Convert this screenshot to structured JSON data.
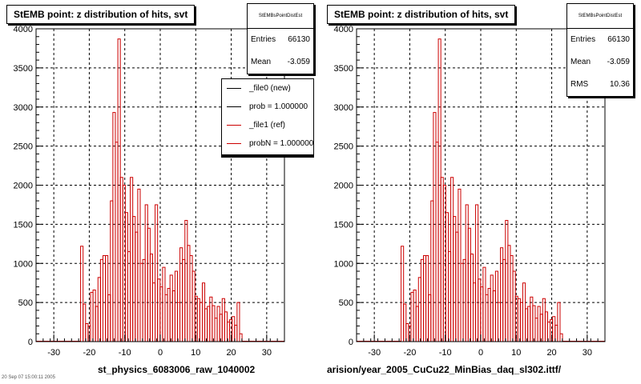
{
  "panels": [
    {
      "title": "StEMB point: z distribution of hits, svt",
      "stats": {
        "name": "StEMBsPointDistEst",
        "rows": [
          {
            "label": "Entries",
            "value": "66130"
          },
          {
            "label": "Mean",
            "value": "-3.059"
          }
        ]
      },
      "legend": [
        {
          "label": "_file0 (new)",
          "color": "#000000"
        },
        {
          "label": "prob = 1.000000",
          "color": "#000000"
        },
        {
          "label": "_file1 (ref)",
          "color": "#cc0000"
        },
        {
          "label": "probN = 1.000000",
          "color": "#cc0000"
        }
      ],
      "x_title": "st_physics_6083006_raw_1040002"
    },
    {
      "title": "StEMB point: z distribution of hits, svt",
      "stats": {
        "name": "StEMBsPointDistEst",
        "rows": [
          {
            "label": "Entries",
            "value": "66130"
          },
          {
            "label": "Mean",
            "value": "-3.059"
          },
          {
            "label": "RMS",
            "value": "10.36"
          }
        ]
      },
      "x_title": "arision/year_2005_CuCu22_MinBias_daq_sl302.ittf/"
    }
  ],
  "footer": "20 Sep 07 15:00:11 2005",
  "colors": {
    "hist_line": "#cc0000",
    "grid": "#000000",
    "frame": "#000000"
  },
  "chart_data": [
    {
      "type": "bar",
      "title": "StEMB point: z distribution of hits, svt",
      "xlabel": "st_physics_6083006_raw_1040002",
      "ylabel": "",
      "xlim": [
        -35,
        35
      ],
      "ylim": [
        0,
        4000
      ],
      "xticks": [
        -30,
        -20,
        -10,
        0,
        10,
        20,
        30
      ],
      "yticks": [
        0,
        500,
        1000,
        1500,
        2000,
        2500,
        3000,
        3500,
        4000
      ],
      "grid": true,
      "legend_position": "top-right",
      "bin_width": 0.7,
      "x": [
        -22.1,
        -21.4,
        -20.7,
        -20.0,
        -19.3,
        -18.6,
        -17.9,
        -17.2,
        -16.5,
        -15.8,
        -15.1,
        -14.4,
        -13.7,
        -13.0,
        -12.3,
        -11.6,
        -10.9,
        -10.2,
        -9.5,
        -8.8,
        -8.1,
        -7.4,
        -6.7,
        -6.0,
        -5.3,
        -4.6,
        -3.9,
        -3.2,
        -2.5,
        -1.8,
        -1.1,
        -0.4,
        0.3,
        1.0,
        1.7,
        2.4,
        3.1,
        3.8,
        4.5,
        5.2,
        5.9,
        6.6,
        7.3,
        8.0,
        8.7,
        9.4,
        10.1,
        10.8,
        11.5,
        12.2,
        12.9,
        13.6,
        14.3,
        15.0,
        15.7,
        16.4,
        17.1,
        17.8,
        18.5,
        19.2,
        19.9,
        20.6,
        21.3,
        22.0,
        22.7
      ],
      "series": [
        {
          "values": [
            1220,
            480,
            230,
            200,
            630,
            660,
            450,
            820,
            1050,
            1100,
            1100,
            600,
            1800,
            2930,
            2550,
            3870,
            2100,
            2000,
            1650,
            1150,
            2100,
            1600,
            1400,
            1950,
            1000,
            1050,
            1750,
            1450,
            1120,
            750,
            1750,
            800,
            700,
            950,
            600,
            680,
            850,
            650,
            900,
            500,
            1200,
            1050,
            1550,
            1230,
            1100,
            900,
            580,
            550,
            500,
            750,
            420,
            450,
            570,
            460,
            300,
            450,
            350,
            550,
            380,
            250,
            280,
            320,
            210,
            500,
            100
          ]
        }
      ]
    },
    {
      "type": "bar",
      "title": "StEMB point: z distribution of hits, svt",
      "xlabel": "arision/year_2005_CuCu22_MinBias_daq_sl302.ittf/",
      "ylabel": "",
      "xlim": [
        -35,
        35
      ],
      "ylim": [
        0,
        4000
      ],
      "xticks": [
        -30,
        -20,
        -10,
        0,
        10,
        20,
        30
      ],
      "yticks": [
        0,
        500,
        1000,
        1500,
        2000,
        2500,
        3000,
        3500,
        4000
      ],
      "grid": true,
      "bin_width": 0.7,
      "x": [
        -22.1,
        -21.4,
        -20.7,
        -20.0,
        -19.3,
        -18.6,
        -17.9,
        -17.2,
        -16.5,
        -15.8,
        -15.1,
        -14.4,
        -13.7,
        -13.0,
        -12.3,
        -11.6,
        -10.9,
        -10.2,
        -9.5,
        -8.8,
        -8.1,
        -7.4,
        -6.7,
        -6.0,
        -5.3,
        -4.6,
        -3.9,
        -3.2,
        -2.5,
        -1.8,
        -1.1,
        -0.4,
        0.3,
        1.0,
        1.7,
        2.4,
        3.1,
        3.8,
        4.5,
        5.2,
        5.9,
        6.6,
        7.3,
        8.0,
        8.7,
        9.4,
        10.1,
        10.8,
        11.5,
        12.2,
        12.9,
        13.6,
        14.3,
        15.0,
        15.7,
        16.4,
        17.1,
        17.8,
        18.5,
        19.2,
        19.9,
        20.6,
        21.3,
        22.0,
        22.7
      ],
      "series": [
        {
          "values": [
            1220,
            480,
            230,
            200,
            630,
            660,
            450,
            820,
            1050,
            1100,
            1100,
            600,
            1800,
            2930,
            2550,
            3870,
            2100,
            2000,
            1650,
            1150,
            2100,
            1600,
            1400,
            1950,
            1000,
            1050,
            1750,
            1450,
            1120,
            750,
            1750,
            800,
            700,
            950,
            600,
            680,
            850,
            650,
            900,
            500,
            1200,
            1050,
            1550,
            1230,
            1100,
            900,
            580,
            550,
            500,
            750,
            420,
            450,
            570,
            460,
            300,
            450,
            350,
            550,
            380,
            250,
            280,
            320,
            210,
            500,
            100
          ]
        }
      ]
    }
  ]
}
